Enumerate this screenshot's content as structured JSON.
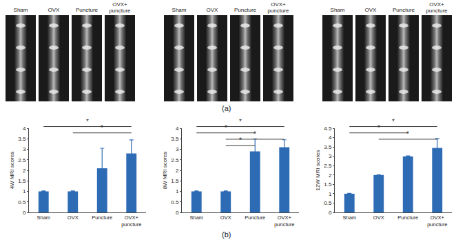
{
  "panel_labels": [
    "(a)",
    "(b)"
  ],
  "images": [
    {
      "labels": [
        "Sham",
        "OVX",
        "Puncture",
        "OVX+ puncture"
      ]
    },
    {
      "labels": [
        "Sham",
        "OVX",
        "Puncture",
        "OVX+ puncture"
      ]
    },
    {
      "labels": [
        "Sham",
        "OVX",
        "Puncture",
        "OVX+ puncture"
      ]
    }
  ],
  "chart_data": [
    {
      "type": "bar",
      "y_label": "4W MRI scores",
      "color": "#2e6bb5",
      "categories": [
        "Sham",
        "OVX",
        "Puncture",
        "OVX+ puncture"
      ],
      "values": [
        1,
        1,
        2.1,
        2.8
      ],
      "errors": [
        0.02,
        0.02,
        0.95,
        0.65
      ],
      "ylim": [
        0,
        4
      ],
      "yticks": [
        0,
        0.5,
        1,
        1.5,
        2,
        2.5,
        3,
        3.5,
        4
      ],
      "significance": [
        {
          "between": [
            "Sham",
            "OVX+ puncture"
          ],
          "label": "*"
        },
        {
          "between": [
            "OVX",
            "OVX+ puncture"
          ],
          "label": "*"
        }
      ]
    },
    {
      "type": "bar",
      "y_label": "8W MRI scores",
      "color": "#2e6bb5",
      "categories": [
        "Sham",
        "OVX",
        "Puncture",
        "OVX+ puncture"
      ],
      "values": [
        1,
        1,
        2.9,
        3.1
      ],
      "errors": [
        0.02,
        0.02,
        0.6,
        0.35
      ],
      "ylim": [
        0,
        4
      ],
      "yticks": [
        0,
        0.5,
        1,
        1.5,
        2,
        2.5,
        3,
        3.5,
        4
      ],
      "significance": [
        {
          "between": [
            "Sham",
            "OVX+ puncture"
          ],
          "label": "*"
        },
        {
          "between": [
            "Sham",
            "Puncture"
          ],
          "label": "*"
        },
        {
          "between": [
            "OVX",
            "OVX+ puncture"
          ],
          "label": "*"
        },
        {
          "between": [
            "OVX",
            "Puncture"
          ],
          "label": "*"
        }
      ]
    },
    {
      "type": "bar",
      "y_label": "12W MRI scores",
      "color": "#2e6bb5",
      "categories": [
        "Sham",
        "OVX",
        "Puncture",
        "OVX+ puncture"
      ],
      "values": [
        1,
        2,
        3,
        3.45
      ],
      "errors": [
        0.02,
        0.02,
        0.02,
        0.5
      ],
      "ylim": [
        0,
        4.5
      ],
      "yticks": [
        0,
        0.5,
        1,
        1.5,
        2,
        2.5,
        3,
        3.5,
        4,
        4.5
      ],
      "significance": [
        {
          "between": [
            "Sham",
            "OVX+ puncture"
          ],
          "label": "*"
        },
        {
          "between": [
            "Sham",
            "Puncture"
          ],
          "label": "*"
        },
        {
          "between": [
            "OVX",
            "OVX+ puncture"
          ],
          "label": "*"
        }
      ]
    }
  ]
}
